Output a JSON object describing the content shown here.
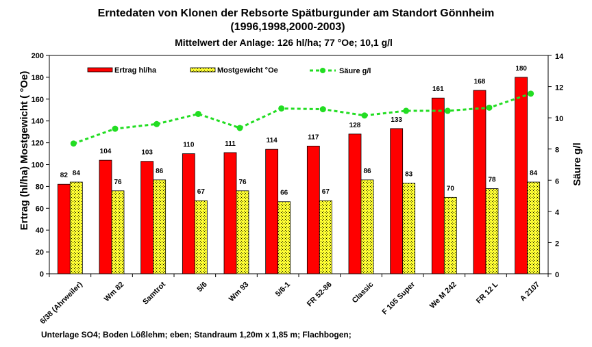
{
  "chart_data": {
    "type": "bar",
    "title": "Erntedaten von Klonen der Rebsorte Spätburgunder am Standort Gönnheim",
    "title_line2": "(1996,1998,2000-2003)",
    "subtitle": "Mittelwert der Anlage: 126 hl/ha; 77 °Oe; 10,1 g/l",
    "ylabel_left": "Ertrag (hl/ha)   Mostgewicht ( °Oe)",
    "ylabel_right": "Säure g/l",
    "ylim_left": [
      0,
      200
    ],
    "ylim_right": [
      0,
      14
    ],
    "yticks_left": [
      "0",
      "20",
      "40",
      "60",
      "80",
      "100",
      "120",
      "140",
      "160",
      "180",
      "200"
    ],
    "yticks_right": [
      "0",
      "2",
      "4",
      "6",
      "8",
      "10",
      "12",
      "14"
    ],
    "grid": false,
    "legend_position": "top",
    "categories": [
      "6/38 (Ahrweiler)",
      "Wm 82",
      "Samtrot",
      "5/6",
      "Wm 93",
      "5/6-1",
      "FR 52-86",
      "Classic",
      "F 105 Super",
      "We M 242",
      "FR 12 L",
      "A 2107"
    ],
    "series": [
      {
        "name": "Ertrag hl/ha",
        "type": "bar",
        "axis": "left",
        "color": "#ff0000",
        "values": [
          82,
          104,
          103,
          110,
          111,
          114,
          117,
          128,
          133,
          161,
          168,
          180
        ]
      },
      {
        "name": "Mostgewicht °Oe",
        "type": "bar",
        "axis": "left",
        "color": "#ffff33",
        "values": [
          84,
          76,
          86,
          67,
          76,
          66,
          67,
          86,
          83,
          70,
          78,
          84
        ]
      },
      {
        "name": "Säure g/l",
        "type": "line",
        "axis": "right",
        "color": "#22dd22",
        "values": [
          8.35,
          9.3,
          9.6,
          10.25,
          9.35,
          10.6,
          10.55,
          10.15,
          10.45,
          10.45,
          10.65,
          11.55
        ]
      }
    ],
    "footnote": "Unterlage SO4;  Boden Lößlehm; eben; Standraum 1,20m x 1,85 m; Flachbogen;"
  }
}
